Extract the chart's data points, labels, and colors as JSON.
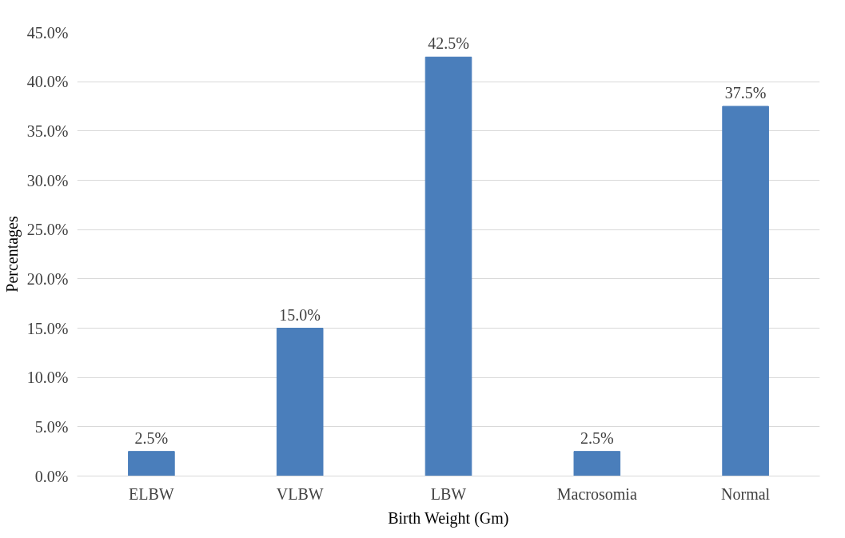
{
  "chart_data": {
    "type": "bar",
    "xlabel": "Birth Weight (Gm)",
    "ylabel": "Percentages",
    "categories": [
      "ELBW",
      "VLBW",
      "LBW",
      "Macrosomia",
      "Normal"
    ],
    "values": [
      2.5,
      15.0,
      42.5,
      2.5,
      37.5
    ],
    "value_labels": [
      "2.5%",
      "15.0%",
      "42.5%",
      "2.5%",
      "37.5%"
    ],
    "color": "#4a7ebb",
    "ylim": [
      0,
      45
    ],
    "yticks": [
      {
        "value": 0,
        "label": "0.0%"
      },
      {
        "value": 5,
        "label": "5.0%"
      },
      {
        "value": 10,
        "label": "10.0%"
      },
      {
        "value": 15,
        "label": "15.0%"
      },
      {
        "value": 20,
        "label": "20.0%"
      },
      {
        "value": 25,
        "label": "25.0%"
      },
      {
        "value": 30,
        "label": "30.0%"
      },
      {
        "value": 35,
        "label": "35.0%"
      },
      {
        "value": 40,
        "label": "40.0%"
      },
      {
        "value": 45,
        "label": "45.0%"
      }
    ],
    "grid": "y"
  }
}
